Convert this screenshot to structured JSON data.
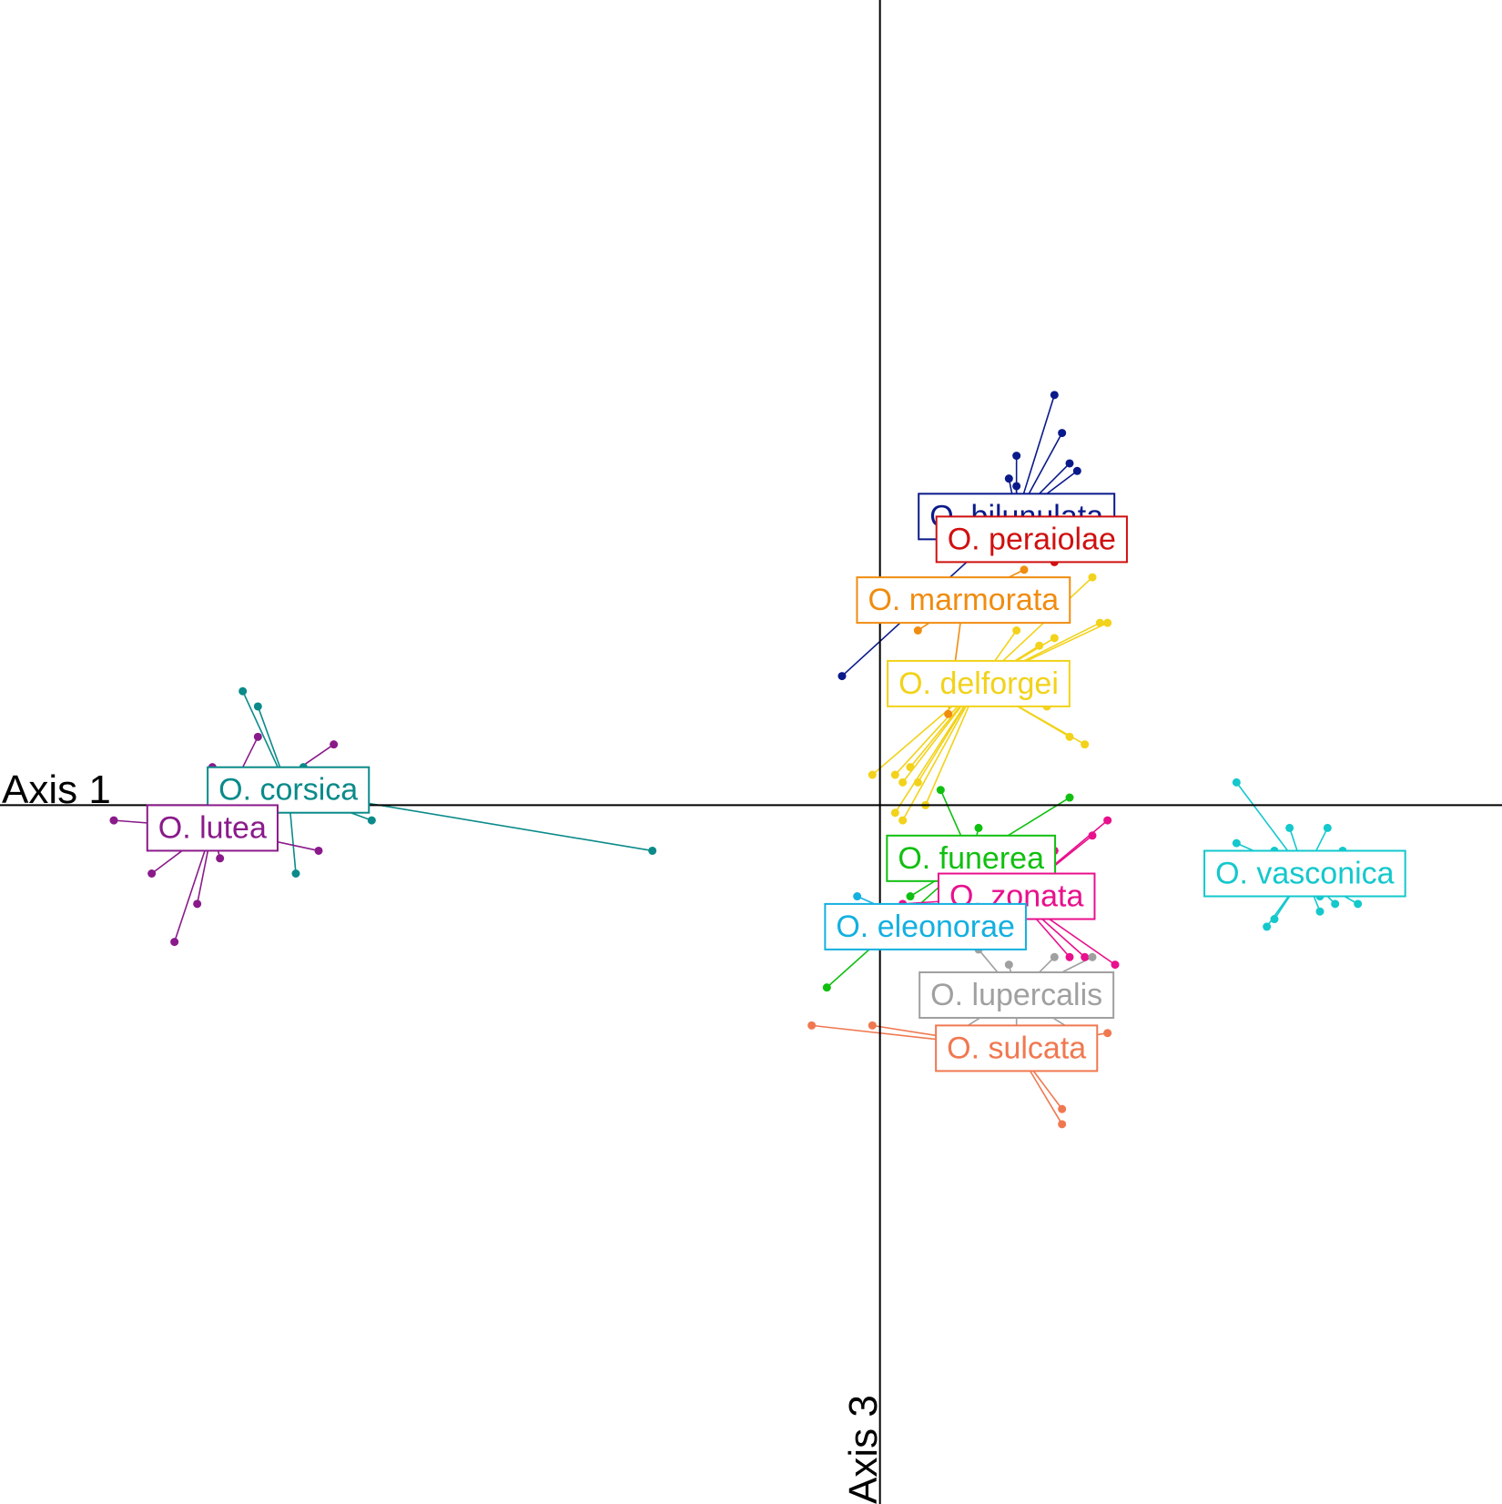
{
  "chart_data": {
    "type": "scatter",
    "subtype": "discriminant analysis scatter plot with group centroids (star plot)",
    "x_axis_label": "Axis 1",
    "y_axis_label": "Axis 3",
    "xlim": [
      -11.6,
      8.2
    ],
    "ylim": [
      -9.2,
      10.6
    ],
    "grid": false,
    "legend": "none (group labels placed at centroids)",
    "groups": [
      {
        "name": "O. corsica",
        "color": "#0b8a8a",
        "centroid": [
          -7.8,
          0.2
        ],
        "points": [
          [
            -8.4,
            1.5
          ],
          [
            -8.2,
            1.3
          ],
          [
            -7.6,
            0.5
          ],
          [
            -7.0,
            0.1
          ],
          [
            -6.7,
            -0.2
          ],
          [
            -3.0,
            -0.6
          ],
          [
            -7.7,
            -0.9
          ],
          [
            -8.3,
            0.4
          ]
        ]
      },
      {
        "name": "O. lutea",
        "color": "#8a1a8a",
        "centroid": [
          -8.8,
          -0.3
        ],
        "points": [
          [
            -10.1,
            -0.2
          ],
          [
            -9.6,
            -0.9
          ],
          [
            -8.7,
            -0.7
          ],
          [
            -9.0,
            -1.3
          ],
          [
            -9.3,
            -1.8
          ],
          [
            -8.8,
            0.5
          ],
          [
            -8.2,
            0.9
          ],
          [
            -7.2,
            0.8
          ],
          [
            -7.4,
            -0.6
          ],
          [
            -8.7,
            -0.3
          ]
        ]
      },
      {
        "name": "O. bilunulata",
        "color": "#0a1a8a",
        "centroid": [
          1.8,
          3.8
        ],
        "points": [
          [
            2.3,
            5.4
          ],
          [
            2.4,
            4.9
          ],
          [
            2.5,
            4.5
          ],
          [
            2.6,
            4.4
          ],
          [
            1.7,
            4.3
          ],
          [
            1.8,
            4.6
          ],
          [
            1.8,
            4.2
          ],
          [
            -0.5,
            1.7
          ],
          [
            1.2,
            3.3
          ],
          [
            1.4,
            3.5
          ]
        ]
      },
      {
        "name": "O. peraiolae",
        "color": "#d01010",
        "centroid": [
          2.0,
          3.5
        ],
        "points": [
          [
            2.3,
            3.2
          ],
          [
            1.9,
            3.3
          ],
          [
            1.6,
            3.6
          ]
        ]
      },
      {
        "name": "O. marmorata",
        "color": "#f08c10",
        "centroid": [
          1.1,
          2.7
        ],
        "points": [
          [
            0.5,
            2.3
          ],
          [
            0.8,
            2.6
          ],
          [
            0.9,
            1.2
          ],
          [
            1.9,
            3.1
          ]
        ]
      },
      {
        "name": "O. delforgei",
        "color": "#f2d21a",
        "centroid": [
          1.3,
          1.6
        ],
        "points": [
          [
            2.8,
            3.0
          ],
          [
            3.0,
            2.4
          ],
          [
            2.9,
            2.4
          ],
          [
            2.1,
            2.1
          ],
          [
            1.8,
            2.3
          ],
          [
            2.3,
            2.2
          ],
          [
            2.1,
            1.5
          ],
          [
            2.5,
            0.9
          ],
          [
            2.7,
            0.8
          ],
          [
            2.2,
            1.3
          ],
          [
            -0.1,
            0.4
          ],
          [
            0.2,
            0.4
          ],
          [
            0.3,
            0.3
          ],
          [
            0.4,
            0.5
          ],
          [
            0.5,
            0.3
          ],
          [
            0.6,
            0.0
          ],
          [
            0.3,
            -0.2
          ],
          [
            0.2,
            -0.1
          ]
        ]
      },
      {
        "name": "O. funerea",
        "color": "#10c010",
        "centroid": [
          1.2,
          -0.7
        ],
        "points": [
          [
            0.8,
            0.2
          ],
          [
            1.3,
            -0.3
          ],
          [
            2.5,
            0.1
          ],
          [
            -0.7,
            -2.4
          ],
          [
            0.3,
            -0.6
          ],
          [
            0.9,
            -0.6
          ],
          [
            0.4,
            -1.2
          ]
        ]
      },
      {
        "name": "O. zonata",
        "color": "#e8108c",
        "centroid": [
          1.8,
          -1.2
        ],
        "points": [
          [
            3.0,
            -0.2
          ],
          [
            2.8,
            -0.4
          ],
          [
            2.3,
            -0.6
          ],
          [
            2.7,
            -2.0
          ],
          [
            3.1,
            -2.1
          ],
          [
            0.3,
            -1.3
          ],
          [
            2.5,
            -2.0
          ]
        ]
      },
      {
        "name": "O. eleonorae",
        "color": "#14b0e0",
        "centroid": [
          0.6,
          -1.6
        ],
        "points": [
          [
            -0.3,
            -1.2
          ],
          [
            0.1,
            -1.4
          ]
        ]
      },
      {
        "name": "O. lupercalis",
        "color": "#a0a0a0",
        "centroid": [
          1.8,
          -2.5
        ],
        "points": [
          [
            1.3,
            -1.9
          ],
          [
            1.7,
            -2.1
          ],
          [
            2.3,
            -2.0
          ],
          [
            2.8,
            -2.0
          ],
          [
            1.0,
            -3.0
          ],
          [
            1.8,
            -3.0
          ],
          [
            2.6,
            -3.0
          ]
        ]
      },
      {
        "name": "O. sulcata",
        "color": "#f07850",
        "centroid": [
          1.8,
          -3.2
        ],
        "points": [
          [
            -0.9,
            -2.9
          ],
          [
            -0.1,
            -2.9
          ],
          [
            2.4,
            -4.0
          ],
          [
            2.4,
            -4.2
          ],
          [
            3.0,
            -3.0
          ]
        ]
      },
      {
        "name": "O. vasconica",
        "color": "#14c8cc",
        "centroid": [
          5.6,
          -0.9
        ],
        "points": [
          [
            4.7,
            0.3
          ],
          [
            5.4,
            -0.3
          ],
          [
            5.9,
            -0.3
          ],
          [
            6.1,
            -0.6
          ],
          [
            4.7,
            -0.5
          ],
          [
            5.2,
            -0.6
          ],
          [
            5.8,
            -1.2
          ],
          [
            6.0,
            -1.3
          ],
          [
            6.3,
            -1.3
          ],
          [
            5.2,
            -1.5
          ],
          [
            5.1,
            -1.6
          ],
          [
            5.8,
            -1.4
          ]
        ]
      }
    ]
  }
}
